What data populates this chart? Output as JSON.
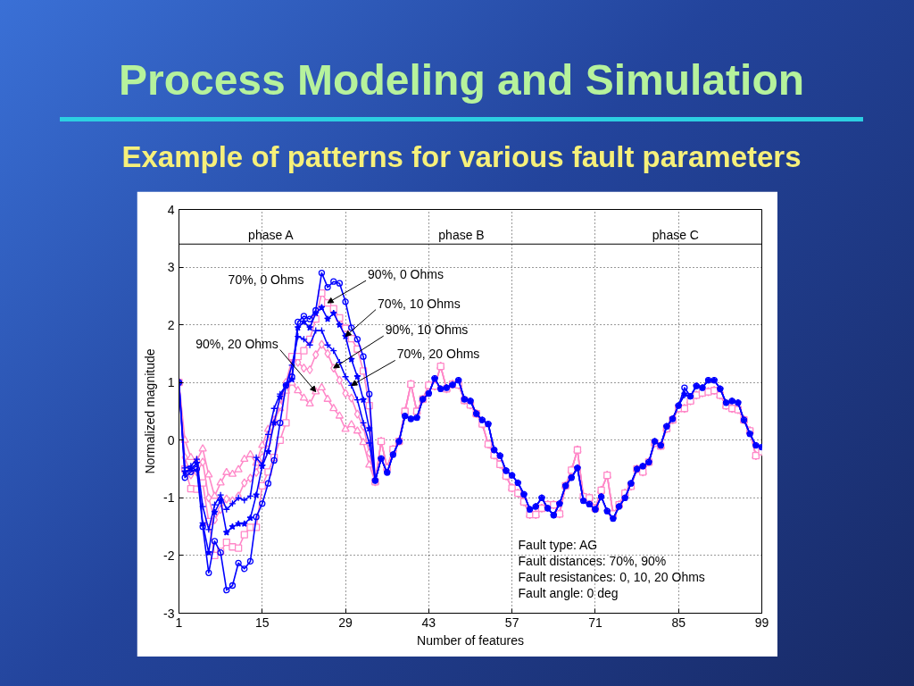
{
  "chart_data": {
    "type": "line",
    "title": "Process Modeling and Simulation",
    "subtitle": "Example of patterns for various fault parameters",
    "xlabel": "Number of features",
    "ylabel": "Normalized magnitude",
    "xlim": [
      1,
      99
    ],
    "ylim": [
      -3,
      4
    ],
    "xticks": [
      1,
      15,
      29,
      43,
      57,
      71,
      85,
      99
    ],
    "yticks": [
      -3,
      -2,
      -1,
      0,
      1,
      2,
      3,
      4
    ],
    "grid": true,
    "line_style": "solid",
    "x": [
      1,
      2,
      3,
      4,
      5,
      6,
      7,
      8,
      9,
      10,
      11,
      12,
      13,
      14,
      15,
      16,
      17,
      18,
      19,
      20,
      21,
      22,
      23,
      24,
      25,
      26,
      27,
      28,
      29,
      30,
      31,
      32,
      33,
      34,
      35,
      36,
      37,
      38,
      39,
      40,
      41,
      42,
      43,
      44,
      45,
      46,
      47,
      48,
      49,
      50,
      51,
      52,
      53,
      54,
      55,
      56,
      57,
      58,
      59,
      60,
      61,
      62,
      63,
      64,
      65,
      66,
      67,
      68,
      69,
      70,
      71,
      72,
      73,
      74,
      75,
      76,
      77,
      78,
      79,
      80,
      81,
      82,
      83,
      84,
      85,
      86,
      87,
      88,
      89,
      90,
      91,
      92,
      93,
      94,
      95,
      96,
      97,
      98,
      99
    ],
    "series": [
      {
        "color": "#0000ff",
        "marker": "circle",
        "values": [
          1.0,
          -0.65,
          -0.55,
          -0.5,
          -1.5,
          -2.3,
          -1.75,
          -1.95,
          -2.6,
          -2.52,
          -2.13,
          -2.23,
          -2.1,
          -1.33,
          -1.1,
          -0.75,
          -0.35,
          0.3,
          0.95,
          1.1,
          2.05,
          2.15,
          2.1,
          2.25,
          2.9,
          2.65,
          2.75,
          2.72,
          2.4,
          1.95,
          1.75,
          1.45,
          0.8,
          -0.7,
          -0.32,
          -0.56,
          -0.25,
          -0.02,
          0.42,
          0.37,
          0.39,
          0.71,
          0.81,
          1.07,
          0.89,
          0.91,
          0.96,
          1.04,
          0.71,
          0.68,
          0.46,
          0.35,
          0.28,
          -0.17,
          -0.27,
          -0.53,
          -0.61,
          -0.74,
          -0.94,
          -1.2,
          -1.15,
          -1.0,
          -1.18,
          -1.3,
          -1.1,
          -0.79,
          -0.65,
          -0.48,
          -1.05,
          -1.11,
          -1.2,
          -0.98,
          -1.23,
          -1.36,
          -1.15,
          -1.0,
          -0.75,
          -0.5,
          -0.45,
          -0.38,
          -0.02,
          -0.09,
          0.24,
          0.37,
          0.6,
          0.91,
          0.76,
          0.94,
          0.91,
          1.04,
          1.04,
          0.89,
          0.65,
          0.68,
          0.65,
          0.35,
          0.11,
          -0.09,
          -0.12
        ]
      },
      {
        "color": "#0000ff",
        "marker": "star",
        "values": [
          1.0,
          -0.55,
          -0.5,
          -0.4,
          -1.45,
          -1.95,
          -1.25,
          -1.05,
          -1.6,
          -1.5,
          -1.45,
          -1.45,
          -1.35,
          -0.95,
          -0.45,
          -0.2,
          0.3,
          0.75,
          0.95,
          1.05,
          1.95,
          2.05,
          1.95,
          2.2,
          2.3,
          2.1,
          2.2,
          2.0,
          1.8,
          1.4,
          1.1,
          0.7,
          0.2,
          -0.7,
          -0.32,
          -0.56,
          -0.25,
          -0.02,
          0.42,
          0.37,
          0.39,
          0.71,
          0.81,
          1.07,
          0.89,
          0.91,
          0.96,
          1.04,
          0.71,
          0.68,
          0.46,
          0.35,
          0.28,
          -0.17,
          -0.27,
          -0.53,
          -0.61,
          -0.74,
          -0.94,
          -1.2,
          -1.15,
          -1.0,
          -1.18,
          -1.3,
          -1.1,
          -0.79,
          -0.65,
          -0.48,
          -1.05,
          -1.11,
          -1.2,
          -0.98,
          -1.23,
          -1.36,
          -1.15,
          -1.0,
          -0.75,
          -0.5,
          -0.45,
          -0.38,
          -0.02,
          -0.09,
          0.24,
          0.37,
          0.6,
          0.8,
          0.76,
          0.94,
          0.91,
          1.04,
          1.04,
          0.89,
          0.65,
          0.68,
          0.65,
          0.35,
          0.11,
          -0.09,
          -0.12
        ]
      },
      {
        "color": "#0000ff",
        "marker": "cross",
        "values": [
          1.0,
          -0.48,
          -0.45,
          -0.33,
          -1.15,
          -1.55,
          -1.12,
          -0.95,
          -1.2,
          -1.1,
          -1.0,
          -1.04,
          -0.97,
          -0.3,
          -0.43,
          0.1,
          0.55,
          0.8,
          0.95,
          1.3,
          1.8,
          1.75,
          1.65,
          1.9,
          1.9,
          1.65,
          1.55,
          1.35,
          1.1,
          0.95,
          0.7,
          0.3,
          -0.05,
          -0.7,
          -0.32,
          -0.56,
          -0.25,
          -0.02,
          0.42,
          0.37,
          0.39,
          0.71,
          0.81,
          1.07,
          0.89,
          0.91,
          0.96,
          1.04,
          0.71,
          0.68,
          0.46,
          0.35,
          0.28,
          -0.17,
          -0.27,
          -0.53,
          -0.61,
          -0.74,
          -0.94,
          -1.2,
          -1.15,
          -1.0,
          -1.18,
          -1.3,
          -1.1,
          -0.79,
          -0.65,
          -0.48,
          -1.05,
          -1.11,
          -1.2,
          -0.98,
          -1.23,
          -1.36,
          -1.15,
          -1.0,
          -0.75,
          -0.5,
          -0.45,
          -0.38,
          -0.02,
          -0.09,
          0.24,
          0.37,
          0.6,
          0.78,
          0.76,
          0.94,
          0.91,
          1.04,
          1.04,
          0.89,
          0.65,
          0.68,
          0.65,
          0.35,
          0.11,
          -0.09,
          -0.12
        ]
      },
      {
        "color": "#ff88c8",
        "marker": "square",
        "values": [
          1.0,
          -0.5,
          -0.84,
          -0.85,
          -0.74,
          -1.41,
          -2.0,
          -1.93,
          -1.77,
          -1.85,
          -1.87,
          -1.64,
          -1.51,
          -1.51,
          -0.79,
          -0.55,
          -0.3,
          0.0,
          0.3,
          1.45,
          1.45,
          1.55,
          1.75,
          2.1,
          2.55,
          2.38,
          2.28,
          2.12,
          1.94,
          1.76,
          1.58,
          1.2,
          0.6,
          -0.72,
          -0.02,
          -0.48,
          -0.16,
          -0.02,
          0.5,
          0.97,
          0.5,
          0.71,
          0.95,
          0.94,
          1.28,
          0.89,
          0.97,
          0.96,
          0.69,
          0.61,
          0.46,
          0.28,
          -0.07,
          -0.26,
          -0.42,
          -0.62,
          -0.83,
          -0.92,
          -1.07,
          -1.29,
          -1.29,
          -1.18,
          -1.12,
          -1.12,
          -1.28,
          -0.79,
          -0.52,
          -0.17,
          -0.98,
          -1.0,
          -1.18,
          -0.87,
          -0.61,
          -1.28,
          -1.12,
          -0.92,
          -0.8,
          -0.5,
          -0.55,
          -0.38,
          -0.05,
          -0.1,
          0.2,
          0.35,
          0.55,
          0.55,
          0.68,
          0.78,
          0.82,
          0.84,
          0.86,
          0.78,
          0.6,
          0.55,
          0.53,
          0.35,
          0.16,
          -0.27,
          -0.2
        ]
      },
      {
        "color": "#ff88c8",
        "marker": "diamond",
        "values": [
          1.0,
          -0.3,
          -0.6,
          -0.55,
          -0.38,
          -1.0,
          -1.38,
          -1.2,
          -1.02,
          -1.05,
          -0.97,
          -0.74,
          -0.66,
          -0.56,
          -0.3,
          -0.05,
          0.3,
          0.6,
          1.0,
          1.4,
          1.35,
          1.25,
          1.22,
          1.48,
          1.66,
          1.5,
          1.25,
          1.04,
          0.81,
          0.73,
          0.45,
          0.24,
          -0.22,
          -0.72,
          -0.02,
          -0.48,
          -0.16,
          -0.02,
          0.5,
          0.97,
          0.5,
          0.71,
          0.95,
          0.94,
          1.28,
          0.89,
          0.97,
          0.96,
          0.69,
          0.61,
          0.46,
          0.28,
          -0.07,
          -0.26,
          -0.42,
          -0.62,
          -0.83,
          -0.92,
          -1.07,
          -1.29,
          -1.29,
          -1.18,
          -1.12,
          -1.12,
          -1.28,
          -0.79,
          -0.52,
          -0.17,
          -0.98,
          -1.0,
          -1.18,
          -0.87,
          -0.61,
          -1.28,
          -1.12,
          -0.92,
          -0.8,
          -0.5,
          -0.55,
          -0.38,
          -0.05,
          -0.1,
          0.2,
          0.35,
          0.55,
          0.55,
          0.68,
          0.78,
          0.82,
          0.84,
          0.86,
          0.78,
          0.6,
          0.55,
          0.53,
          0.35,
          0.16,
          -0.27,
          -0.2
        ]
      },
      {
        "color": "#ff88c8",
        "marker": "triangle",
        "values": [
          1.0,
          0.0,
          -0.3,
          -0.35,
          -0.15,
          -0.6,
          -0.97,
          -0.74,
          -0.56,
          -0.59,
          -0.51,
          -0.33,
          -0.25,
          -0.4,
          -0.09,
          0.19,
          0.35,
          0.55,
          0.85,
          0.99,
          0.86,
          0.73,
          0.63,
          0.84,
          0.91,
          0.71,
          0.55,
          0.42,
          0.19,
          0.27,
          0.16,
          -0.04,
          -0.43,
          -0.72,
          -0.02,
          -0.48,
          -0.16,
          -0.02,
          0.5,
          0.97,
          0.5,
          0.71,
          0.95,
          0.94,
          1.28,
          0.89,
          0.97,
          0.96,
          0.69,
          0.61,
          0.46,
          0.28,
          -0.07,
          -0.26,
          -0.42,
          -0.62,
          -0.83,
          -0.92,
          -1.07,
          -1.29,
          -1.29,
          -1.18,
          -1.12,
          -1.12,
          -1.28,
          -0.79,
          -0.52,
          -0.17,
          -0.98,
          -1.0,
          -1.18,
          -0.87,
          -0.61,
          -1.28,
          -1.12,
          -0.92,
          -0.8,
          -0.5,
          -0.55,
          -0.38,
          -0.05,
          -0.1,
          0.2,
          0.35,
          0.55,
          0.55,
          0.68,
          0.78,
          0.82,
          0.84,
          0.86,
          0.78,
          0.6,
          0.55,
          0.53,
          0.35,
          0.16,
          -0.27,
          -0.2
        ]
      }
    ],
    "ref_lines": [
      {
        "axis": "y",
        "value": 3.4,
        "color": "#000000"
      }
    ],
    "annotations": [
      {
        "text": "phase A",
        "x": 16.5,
        "y": 3.4
      },
      {
        "text": "phase B",
        "x": 48.5,
        "y": 3.4
      },
      {
        "text": "phase C",
        "x": 84.5,
        "y": 3.4
      },
      {
        "text": "70%, 0 Ohms",
        "x": 25,
        "y": 2.9
      },
      {
        "text": "90%, 0 Ohms",
        "x": 26,
        "y": 2.38
      },
      {
        "text": "70%, 10 Ohms",
        "x": 29,
        "y": 1.8
      },
      {
        "text": "90%, 10 Ohms",
        "x": 27,
        "y": 1.25
      },
      {
        "text": "90%, 20 Ohms",
        "x": 24,
        "y": 0.84
      },
      {
        "text": "70%, 20 Ohms",
        "x": 30,
        "y": 0.95
      },
      "Fault type: AG",
      "Fault distances: 70%, 90%",
      "Fault resistances: 0, 10, 20 Ohms",
      "Fault angle: 0 deg"
    ]
  }
}
